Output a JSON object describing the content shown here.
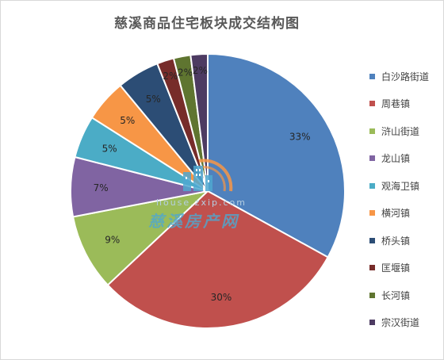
{
  "chart_data": {
    "type": "pie",
    "title": "慈溪商品住宅板块成交结构图",
    "legend_position": "right",
    "start_angle_deg": 0,
    "direction": "clockwise",
    "slices": [
      {
        "name": "白沙路街道",
        "value": 33,
        "label": "33%",
        "color": "#4f81bd"
      },
      {
        "name": "周巷镇",
        "value": 30,
        "label": "30%",
        "color": "#c0504d"
      },
      {
        "name": "浒山街道",
        "value": 9,
        "label": "9%",
        "color": "#9bbb59"
      },
      {
        "name": "龙山镇",
        "value": 7,
        "label": "7%",
        "color": "#8064a2"
      },
      {
        "name": "观海卫镇",
        "value": 5,
        "label": "5%",
        "color": "#4bacc6"
      },
      {
        "name": "横河镇",
        "value": 5,
        "label": "5%",
        "color": "#f79646"
      },
      {
        "name": "桥头镇",
        "value": 5,
        "label": "5%",
        "color": "#2c4d75"
      },
      {
        "name": "匡堰镇",
        "value": 2,
        "label": "2%",
        "color": "#772c2a"
      },
      {
        "name": "长河镇",
        "value": 2,
        "label": "2%",
        "color": "#5f7530"
      },
      {
        "name": "宗汉街道",
        "value": 2,
        "label": "2%",
        "color": "#4d3b62"
      }
    ]
  },
  "watermark": {
    "url": "house.zxip.com",
    "name": "慈溪房产网",
    "logo_icon": "building-logo-icon"
  }
}
